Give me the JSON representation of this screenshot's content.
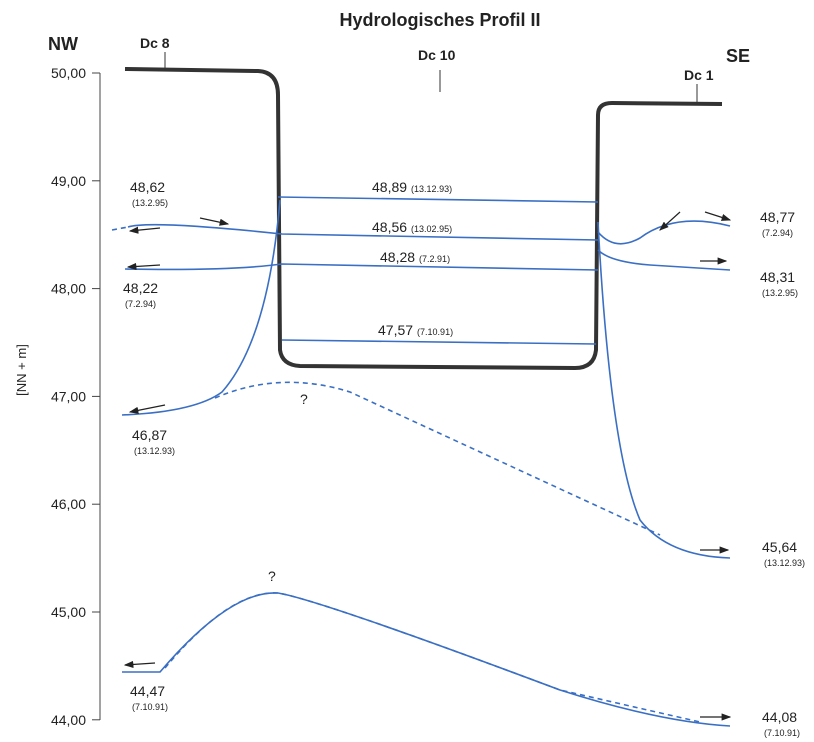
{
  "title": "Hydrologisches Profil II",
  "directions": {
    "left": "NW",
    "right": "SE"
  },
  "wells": [
    "Dc 8",
    "Dc 10",
    "Dc 1"
  ],
  "axis": {
    "label": "[NN + m]",
    "ticks": [
      "50,00",
      "49,00",
      "48,00",
      "47,00",
      "46,00",
      "45,00",
      "44,00"
    ]
  },
  "levels": [
    {
      "value": "48,62",
      "date": "(13.2.95)"
    },
    {
      "value": "48,22",
      "date": "(7.2.94)"
    },
    {
      "value": "46,87",
      "date": "(13.12.93)"
    },
    {
      "value": "44,47",
      "date": "(7.10.91)"
    },
    {
      "value": "48,89",
      "date": "(13.12.93)"
    },
    {
      "value": "48,56",
      "date": "(13.02.95)"
    },
    {
      "value": "48,28",
      "date": "(7.2.91)"
    },
    {
      "value": "47,57",
      "date": "(7.10.91)"
    },
    {
      "value": "48,77",
      "date": "(7.2.94)"
    },
    {
      "value": "48,31",
      "date": "(13.2.95)"
    },
    {
      "value": "45,64",
      "date": "(13.12.93)"
    },
    {
      "value": "44,08",
      "date": "(7.10.91)"
    }
  ],
  "unknown": [
    "?",
    "?"
  ]
}
